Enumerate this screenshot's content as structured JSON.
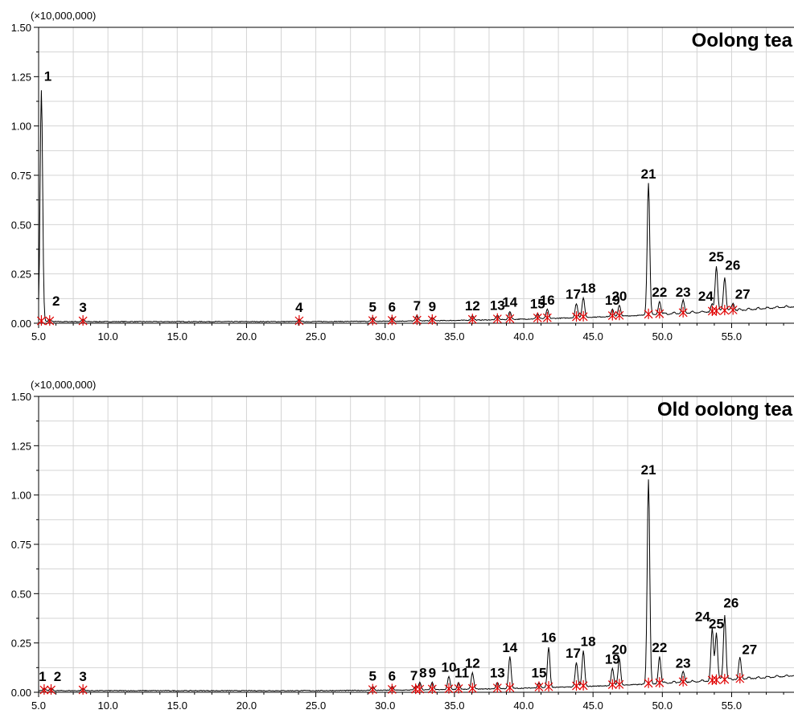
{
  "chart_data": [
    {
      "type": "line",
      "title": "Oolong tea",
      "scale_label": "(×10,000,000)",
      "xlim": [
        5.0,
        59.5
      ],
      "ylim": [
        0,
        1.5
      ],
      "x_ticks": [
        "5.0",
        "10.0",
        "15.0",
        "20.0",
        "25.0",
        "30.0",
        "35.0",
        "40.0",
        "45.0",
        "50.0",
        "55.0"
      ],
      "y_ticks": [
        "0.00",
        "0.25",
        "0.50",
        "0.75",
        "1.00",
        "1.25",
        "1.50"
      ],
      "peaks": [
        {
          "label": "1",
          "x": 5.2,
          "y": 1.18
        },
        {
          "label": "2",
          "x": 5.8,
          "y": 0.02
        },
        {
          "label": "3",
          "x": 8.2,
          "y": 0.02
        },
        {
          "label": "4",
          "x": 23.8,
          "y": 0.02
        },
        {
          "label": "5",
          "x": 29.1,
          "y": 0.03
        },
        {
          "label": "6",
          "x": 30.5,
          "y": 0.03
        },
        {
          "label": "7",
          "x": 32.3,
          "y": 0.04
        },
        {
          "label": "9",
          "x": 33.4,
          "y": 0.03
        },
        {
          "label": "12",
          "x": 36.3,
          "y": 0.04
        },
        {
          "label": "13",
          "x": 38.1,
          "y": 0.04
        },
        {
          "label": "14",
          "x": 39.0,
          "y": 0.06
        },
        {
          "label": "15",
          "x": 41.0,
          "y": 0.05
        },
        {
          "label": "16",
          "x": 41.7,
          "y": 0.07
        },
        {
          "label": "17",
          "x": 43.8,
          "y": 0.1
        },
        {
          "label": "18",
          "x": 44.3,
          "y": 0.13
        },
        {
          "label": "19",
          "x": 46.4,
          "y": 0.07
        },
        {
          "label": "20",
          "x": 46.9,
          "y": 0.09
        },
        {
          "label": "21",
          "x": 49.0,
          "y": 0.71
        },
        {
          "label": "22",
          "x": 49.8,
          "y": 0.11
        },
        {
          "label": "23",
          "x": 51.5,
          "y": 0.11
        },
        {
          "label": "24",
          "x": 53.6,
          "y": 0.09
        },
        {
          "label": "25",
          "x": 53.9,
          "y": 0.29
        },
        {
          "label": "26",
          "x": 54.5,
          "y": 0.23
        },
        {
          "label": "27",
          "x": 55.1,
          "y": 0.1
        }
      ]
    },
    {
      "type": "line",
      "title": "Old oolong tea",
      "scale_label": "(×10,000,000)",
      "xlim": [
        5.0,
        59.5
      ],
      "ylim": [
        0,
        1.5
      ],
      "x_ticks": [
        "5.0",
        "10.0",
        "15.0",
        "20.0",
        "25.0",
        "30.0",
        "35.0",
        "40.0",
        "45.0",
        "50.0",
        "55.0"
      ],
      "y_ticks": [
        "0.00",
        "0.25",
        "0.50",
        "0.75",
        "1.00",
        "1.25",
        "1.50"
      ],
      "peaks": [
        {
          "label": "1",
          "x": 5.4,
          "y": 0.02
        },
        {
          "label": "2",
          "x": 5.9,
          "y": 0.02
        },
        {
          "label": "3",
          "x": 8.2,
          "y": 0.02
        },
        {
          "label": "5",
          "x": 29.1,
          "y": 0.03
        },
        {
          "label": "6",
          "x": 30.5,
          "y": 0.03
        },
        {
          "label": "7",
          "x": 32.2,
          "y": 0.03
        },
        {
          "label": "8",
          "x": 32.5,
          "y": 0.05
        },
        {
          "label": "9",
          "x": 33.4,
          "y": 0.05
        },
        {
          "label": "10",
          "x": 34.6,
          "y": 0.08
        },
        {
          "label": "11",
          "x": 35.3,
          "y": 0.05
        },
        {
          "label": "12",
          "x": 36.3,
          "y": 0.1
        },
        {
          "label": "13",
          "x": 38.1,
          "y": 0.05
        },
        {
          "label": "14",
          "x": 39.0,
          "y": 0.18
        },
        {
          "label": "15",
          "x": 41.1,
          "y": 0.05
        },
        {
          "label": "16",
          "x": 41.8,
          "y": 0.23
        },
        {
          "label": "17",
          "x": 43.8,
          "y": 0.15
        },
        {
          "label": "18",
          "x": 44.3,
          "y": 0.21
        },
        {
          "label": "19",
          "x": 46.4,
          "y": 0.12
        },
        {
          "label": "20",
          "x": 46.9,
          "y": 0.17
        },
        {
          "label": "21",
          "x": 49.0,
          "y": 1.08
        },
        {
          "label": "22",
          "x": 49.8,
          "y": 0.18
        },
        {
          "label": "23",
          "x": 51.5,
          "y": 0.1
        },
        {
          "label": "24",
          "x": 53.6,
          "y": 0.32
        },
        {
          "label": "25",
          "x": 53.9,
          "y": 0.3
        },
        {
          "label": "26",
          "x": 54.5,
          "y": 0.39
        },
        {
          "label": "27",
          "x": 55.6,
          "y": 0.17
        }
      ]
    }
  ]
}
